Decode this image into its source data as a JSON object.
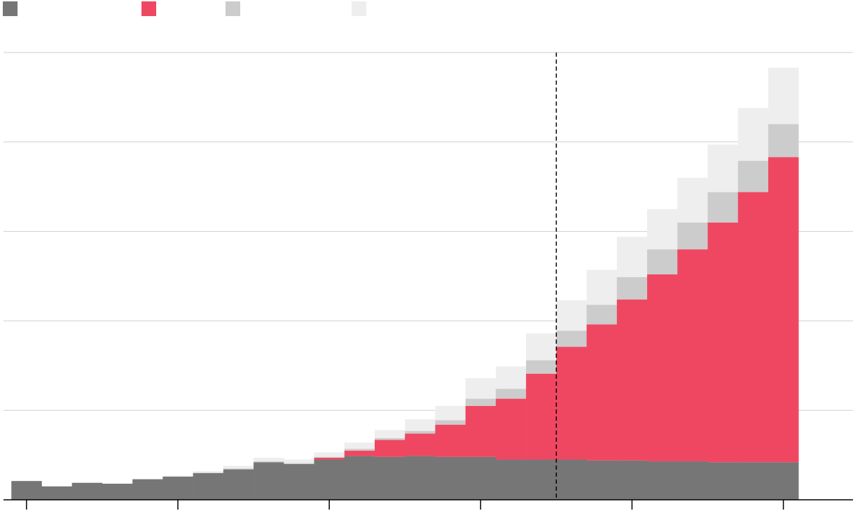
{
  "chart_data": {
    "type": "bar",
    "stacked": true,
    "x": [
      0,
      1,
      2,
      3,
      4,
      5,
      6,
      7,
      8,
      9,
      10,
      11,
      12,
      13,
      14,
      15,
      16,
      17,
      18,
      19,
      20,
      21,
      22,
      23,
      24,
      25
    ],
    "xlim": [
      -0.76,
      27.3
    ],
    "xticks": [
      0,
      5,
      10,
      15,
      20,
      25
    ],
    "ylim": [
      0,
      5
    ],
    "yticks": [
      0,
      1,
      2,
      3,
      4,
      5
    ],
    "grid": true,
    "vline": 17.5,
    "series": [
      {
        "color": "#767676",
        "values": [
          0.21,
          0.15,
          0.19,
          0.18,
          0.23,
          0.26,
          0.3,
          0.34,
          0.42,
          0.4,
          0.45,
          0.49,
          0.48,
          0.49,
          0.48,
          0.48,
          0.45,
          0.45,
          0.45,
          0.44,
          0.44,
          0.43,
          0.43,
          0.42,
          0.42,
          0.42
        ]
      },
      {
        "color": "#ef4762",
        "values": [
          0,
          0,
          0,
          0,
          0,
          0,
          0,
          0,
          0,
          0,
          0.02,
          0.06,
          0.19,
          0.25,
          0.36,
          0.57,
          0.68,
          0.96,
          1.26,
          1.52,
          1.8,
          2.09,
          2.37,
          2.68,
          3.02,
          3.41
        ]
      },
      {
        "color": "#cccccc",
        "values": [
          0,
          0,
          0,
          0,
          0,
          0,
          0,
          0.01,
          0.01,
          0.01,
          0.01,
          0.02,
          0.02,
          0.03,
          0.05,
          0.08,
          0.11,
          0.15,
          0.18,
          0.22,
          0.25,
          0.28,
          0.3,
          0.34,
          0.35,
          0.37
        ]
      },
      {
        "color": "#eeeeee",
        "values": [
          0,
          0,
          0,
          0,
          0,
          0.01,
          0.02,
          0.03,
          0.04,
          0.04,
          0.05,
          0.07,
          0.09,
          0.13,
          0.16,
          0.23,
          0.25,
          0.3,
          0.34,
          0.39,
          0.45,
          0.45,
          0.5,
          0.53,
          0.59,
          0.63
        ]
      }
    ]
  }
}
